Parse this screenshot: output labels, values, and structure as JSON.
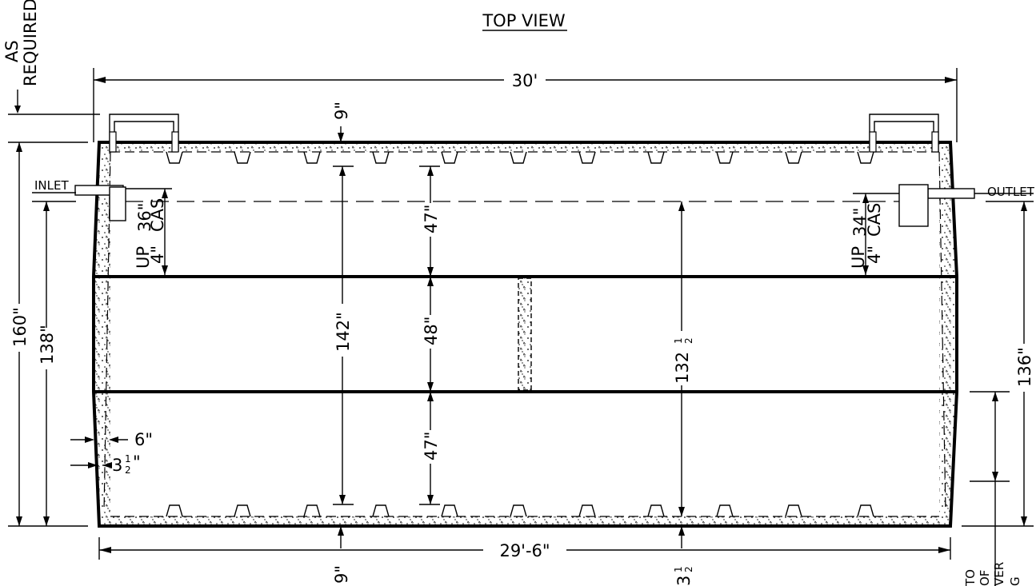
{
  "title": "TOP VIEW",
  "labels": {
    "as": "AS",
    "required": "REQUIRED",
    "inlet": "INLET",
    "outlet": "OUTLET",
    "inlet_up": "UP",
    "inlet_up_dim": "4\"",
    "inlet_cas_dim": "36\"",
    "inlet_cas": "CAS",
    "outlet_up": "UP",
    "outlet_up_dim": "4\"",
    "outlet_cas_dim": "34\"",
    "outlet_cas": "CAS",
    "to": "TO",
    "of": "OF",
    "ver": "VER",
    "g": "G"
  },
  "dimensions": {
    "overall_length_top": "30'",
    "overall_length_bottom": "29'-6\"",
    "top_wall": "9\"",
    "bottom_wall": "9\"",
    "height_left_outer": "160\"",
    "height_left_inner": "138\"",
    "height_right": "136\"",
    "interior_142": "142\"",
    "section_top": "47\"",
    "section_mid": "48\"",
    "section_bottom": "47\"",
    "interior_132": "132",
    "half": "1",
    "half_den": "2",
    "wall_6": "6\"",
    "wall_3": "3",
    "bottom_3": "3",
    "inch": "\""
  },
  "colors": {
    "line": "#000000",
    "background": "#ffffff"
  }
}
